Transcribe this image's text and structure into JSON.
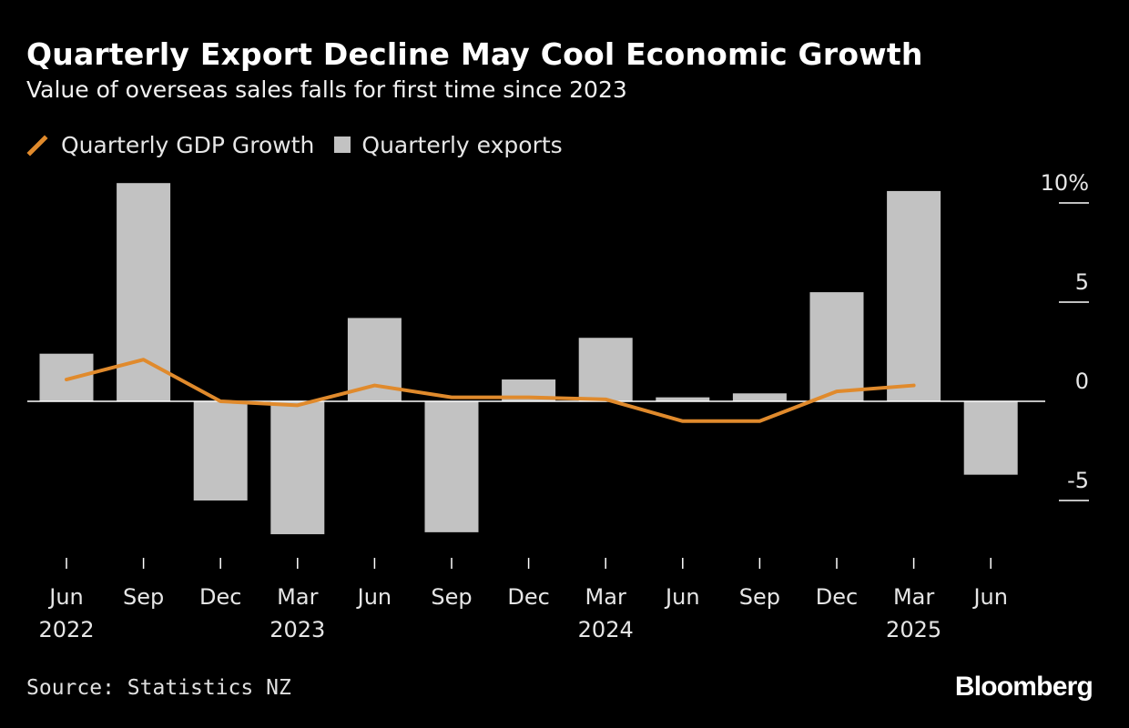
{
  "title": "Quarterly Export Decline May Cool Economic Growth",
  "subtitle": "Value of overseas sales falls for first time since 2023",
  "legend": {
    "line_label": "Quarterly GDP Growth",
    "bar_label": "Quarterly exports"
  },
  "source": "Source: Statistics NZ",
  "brand": "Bloomberg",
  "colors": {
    "background": "#000000",
    "bar": "#c2c2c2",
    "line": "#e08a2c",
    "axis": "#ffffff",
    "text": "#e6e6e6"
  },
  "chart_data": {
    "type": "bar",
    "title": "Quarterly Export Decline May Cool Economic Growth",
    "categories": [
      "Jun",
      "Sep",
      "Dec",
      "Mar",
      "Jun",
      "Sep",
      "Dec",
      "Mar",
      "Jun",
      "Sep",
      "Dec",
      "Mar",
      "Jun"
    ],
    "year_labels": [
      "2022",
      "",
      "",
      "2023",
      "",
      "",
      "",
      "2024",
      "",
      "",
      "",
      "2025",
      ""
    ],
    "series": [
      {
        "name": "Quarterly exports",
        "type": "bar",
        "values": [
          2.4,
          11.0,
          -5.0,
          -6.7,
          4.2,
          -6.6,
          1.1,
          3.2,
          0.2,
          0.4,
          5.5,
          10.6,
          -3.7
        ]
      },
      {
        "name": "Quarterly GDP Growth",
        "type": "line",
        "values": [
          1.1,
          2.1,
          0.0,
          -0.2,
          0.8,
          0.2,
          0.2,
          0.1,
          -1.0,
          -1.0,
          0.5,
          0.8,
          null
        ]
      }
    ],
    "y_axis": {
      "ticks": [
        10,
        5,
        0,
        -5
      ],
      "tick_labels": [
        "10%",
        "5",
        "0",
        "-5"
      ],
      "position": "right"
    },
    "ylim": [
      -8.5,
      11.5
    ],
    "xlabel": "",
    "ylabel": ""
  }
}
